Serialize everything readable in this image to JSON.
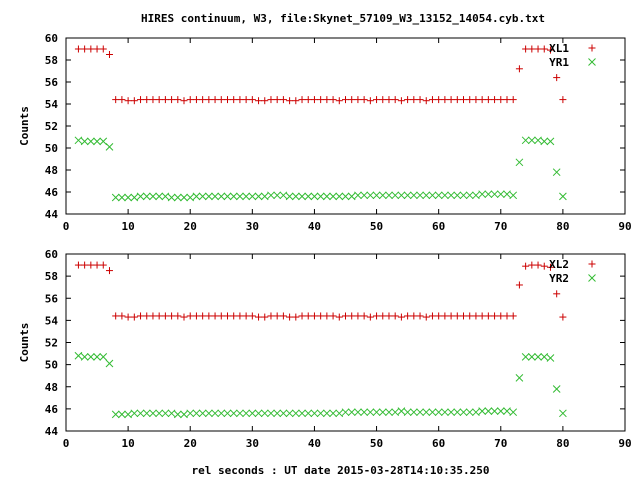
{
  "title": "HIRES continuum, W3, file:Skynet_57109_W3_13152_14054.cyb.txt",
  "colors": {
    "red": "#cc0000",
    "green": "#33bb33",
    "axis": "#000000"
  },
  "chart_data": [
    {
      "type": "scatter",
      "ylabel": "Counts",
      "xlabel": "",
      "xlim": [
        0,
        90
      ],
      "ylim": [
        44,
        60
      ],
      "xticks": [
        0,
        10,
        20,
        30,
        40,
        50,
        60,
        70,
        80,
        90
      ],
      "yticks": [
        44,
        46,
        48,
        50,
        52,
        54,
        56,
        58,
        60
      ],
      "legend_position": "top-right",
      "series": [
        {
          "name": "XL1",
          "marker": "plus",
          "color": "#cc0000",
          "x": [
            2,
            3,
            4,
            5,
            6,
            7,
            8,
            9,
            10,
            11,
            12,
            13,
            14,
            15,
            16,
            17,
            18,
            19,
            20,
            21,
            22,
            23,
            24,
            25,
            26,
            27,
            28,
            29,
            30,
            31,
            32,
            33,
            34,
            35,
            36,
            37,
            38,
            39,
            40,
            41,
            42,
            43,
            44,
            45,
            46,
            47,
            48,
            49,
            50,
            51,
            52,
            53,
            54,
            55,
            56,
            57,
            58,
            59,
            60,
            61,
            62,
            63,
            64,
            65,
            66,
            67,
            68,
            69,
            70,
            71,
            72,
            73,
            74,
            75,
            76,
            77,
            78,
            79,
            80
          ],
          "y": [
            59.0,
            59.0,
            59.0,
            59.0,
            59.0,
            58.5,
            54.4,
            54.4,
            54.3,
            54.3,
            54.4,
            54.4,
            54.4,
            54.4,
            54.4,
            54.4,
            54.4,
            54.3,
            54.4,
            54.4,
            54.4,
            54.4,
            54.4,
            54.4,
            54.4,
            54.4,
            54.4,
            54.4,
            54.4,
            54.3,
            54.3,
            54.4,
            54.4,
            54.4,
            54.3,
            54.3,
            54.4,
            54.4,
            54.4,
            54.4,
            54.4,
            54.4,
            54.3,
            54.4,
            54.4,
            54.4,
            54.4,
            54.3,
            54.4,
            54.4,
            54.4,
            54.4,
            54.3,
            54.4,
            54.4,
            54.4,
            54.3,
            54.4,
            54.4,
            54.4,
            54.4,
            54.4,
            54.4,
            54.4,
            54.4,
            54.4,
            54.4,
            54.4,
            54.4,
            54.4,
            54.4,
            57.2,
            59.0,
            59.0,
            59.0,
            59.0,
            58.9,
            56.4,
            54.4
          ]
        },
        {
          "name": "YR1",
          "marker": "cross",
          "color": "#33bb33",
          "x": [
            2,
            3,
            4,
            5,
            6,
            7,
            8,
            9,
            10,
            11,
            12,
            13,
            14,
            15,
            16,
            17,
            18,
            19,
            20,
            21,
            22,
            23,
            24,
            25,
            26,
            27,
            28,
            29,
            30,
            31,
            32,
            33,
            34,
            35,
            36,
            37,
            38,
            39,
            40,
            41,
            42,
            43,
            44,
            45,
            46,
            47,
            48,
            49,
            50,
            51,
            52,
            53,
            54,
            55,
            56,
            57,
            58,
            59,
            60,
            61,
            62,
            63,
            64,
            65,
            66,
            67,
            68,
            69,
            70,
            71,
            72,
            73,
            74,
            75,
            76,
            77,
            78,
            79,
            80
          ],
          "y": [
            50.7,
            50.6,
            50.6,
            50.6,
            50.6,
            50.1,
            45.5,
            45.5,
            45.5,
            45.5,
            45.6,
            45.6,
            45.6,
            45.6,
            45.6,
            45.5,
            45.5,
            45.5,
            45.5,
            45.6,
            45.6,
            45.6,
            45.6,
            45.6,
            45.6,
            45.6,
            45.6,
            45.6,
            45.6,
            45.6,
            45.6,
            45.7,
            45.7,
            45.7,
            45.6,
            45.6,
            45.6,
            45.6,
            45.6,
            45.6,
            45.6,
            45.6,
            45.6,
            45.6,
            45.6,
            45.7,
            45.7,
            45.7,
            45.7,
            45.7,
            45.7,
            45.7,
            45.7,
            45.7,
            45.7,
            45.7,
            45.7,
            45.7,
            45.7,
            45.7,
            45.7,
            45.7,
            45.7,
            45.7,
            45.7,
            45.8,
            45.8,
            45.8,
            45.8,
            45.8,
            45.7,
            48.7,
            50.7,
            50.7,
            50.7,
            50.6,
            50.6,
            47.8,
            45.6
          ]
        }
      ]
    },
    {
      "type": "scatter",
      "ylabel": "Counts",
      "xlabel": "rel seconds : UT date 2015-03-28T14:10:35.250",
      "xlim": [
        0,
        90
      ],
      "ylim": [
        44,
        60
      ],
      "xticks": [
        0,
        10,
        20,
        30,
        40,
        50,
        60,
        70,
        80,
        90
      ],
      "yticks": [
        44,
        46,
        48,
        50,
        52,
        54,
        56,
        58,
        60
      ],
      "legend_position": "top-right",
      "series": [
        {
          "name": "XL2",
          "marker": "plus",
          "color": "#cc0000",
          "x": [
            2,
            3,
            4,
            5,
            6,
            7,
            8,
            9,
            10,
            11,
            12,
            13,
            14,
            15,
            16,
            17,
            18,
            19,
            20,
            21,
            22,
            23,
            24,
            25,
            26,
            27,
            28,
            29,
            30,
            31,
            32,
            33,
            34,
            35,
            36,
            37,
            38,
            39,
            40,
            41,
            42,
            43,
            44,
            45,
            46,
            47,
            48,
            49,
            50,
            51,
            52,
            53,
            54,
            55,
            56,
            57,
            58,
            59,
            60,
            61,
            62,
            63,
            64,
            65,
            66,
            67,
            68,
            69,
            70,
            71,
            72,
            73,
            74,
            75,
            76,
            77,
            78,
            79,
            80
          ],
          "y": [
            59.0,
            59.0,
            59.0,
            59.0,
            59.0,
            58.5,
            54.4,
            54.4,
            54.3,
            54.3,
            54.4,
            54.4,
            54.4,
            54.4,
            54.4,
            54.4,
            54.4,
            54.3,
            54.4,
            54.4,
            54.4,
            54.4,
            54.4,
            54.4,
            54.4,
            54.4,
            54.4,
            54.4,
            54.4,
            54.3,
            54.3,
            54.4,
            54.4,
            54.4,
            54.3,
            54.3,
            54.4,
            54.4,
            54.4,
            54.4,
            54.4,
            54.4,
            54.3,
            54.4,
            54.4,
            54.4,
            54.4,
            54.3,
            54.4,
            54.4,
            54.4,
            54.4,
            54.3,
            54.4,
            54.4,
            54.4,
            54.3,
            54.4,
            54.4,
            54.4,
            54.4,
            54.4,
            54.4,
            54.4,
            54.4,
            54.4,
            54.4,
            54.4,
            54.4,
            54.4,
            54.4,
            57.2,
            58.9,
            59.0,
            59.0,
            58.9,
            58.8,
            56.4,
            54.3
          ]
        },
        {
          "name": "YR2",
          "marker": "cross",
          "color": "#33bb33",
          "x": [
            2,
            3,
            4,
            5,
            6,
            7,
            8,
            9,
            10,
            11,
            12,
            13,
            14,
            15,
            16,
            17,
            18,
            19,
            20,
            21,
            22,
            23,
            24,
            25,
            26,
            27,
            28,
            29,
            30,
            31,
            32,
            33,
            34,
            35,
            36,
            37,
            38,
            39,
            40,
            41,
            42,
            43,
            44,
            45,
            46,
            47,
            48,
            49,
            50,
            51,
            52,
            53,
            54,
            55,
            56,
            57,
            58,
            59,
            60,
            61,
            62,
            63,
            64,
            65,
            66,
            67,
            68,
            69,
            70,
            71,
            72,
            73,
            74,
            75,
            76,
            77,
            78,
            79,
            80
          ],
          "y": [
            50.8,
            50.7,
            50.7,
            50.7,
            50.7,
            50.1,
            45.5,
            45.5,
            45.5,
            45.6,
            45.6,
            45.6,
            45.6,
            45.6,
            45.6,
            45.6,
            45.5,
            45.5,
            45.6,
            45.6,
            45.6,
            45.6,
            45.6,
            45.6,
            45.6,
            45.6,
            45.6,
            45.6,
            45.6,
            45.6,
            45.6,
            45.6,
            45.6,
            45.6,
            45.6,
            45.6,
            45.6,
            45.6,
            45.6,
            45.6,
            45.6,
            45.6,
            45.6,
            45.7,
            45.7,
            45.7,
            45.7,
            45.7,
            45.7,
            45.7,
            45.7,
            45.7,
            45.8,
            45.7,
            45.7,
            45.7,
            45.7,
            45.7,
            45.7,
            45.7,
            45.7,
            45.7,
            45.7,
            45.7,
            45.7,
            45.8,
            45.8,
            45.8,
            45.8,
            45.8,
            45.7,
            48.8,
            50.7,
            50.7,
            50.7,
            50.7,
            50.6,
            47.8,
            45.6
          ]
        }
      ]
    }
  ]
}
